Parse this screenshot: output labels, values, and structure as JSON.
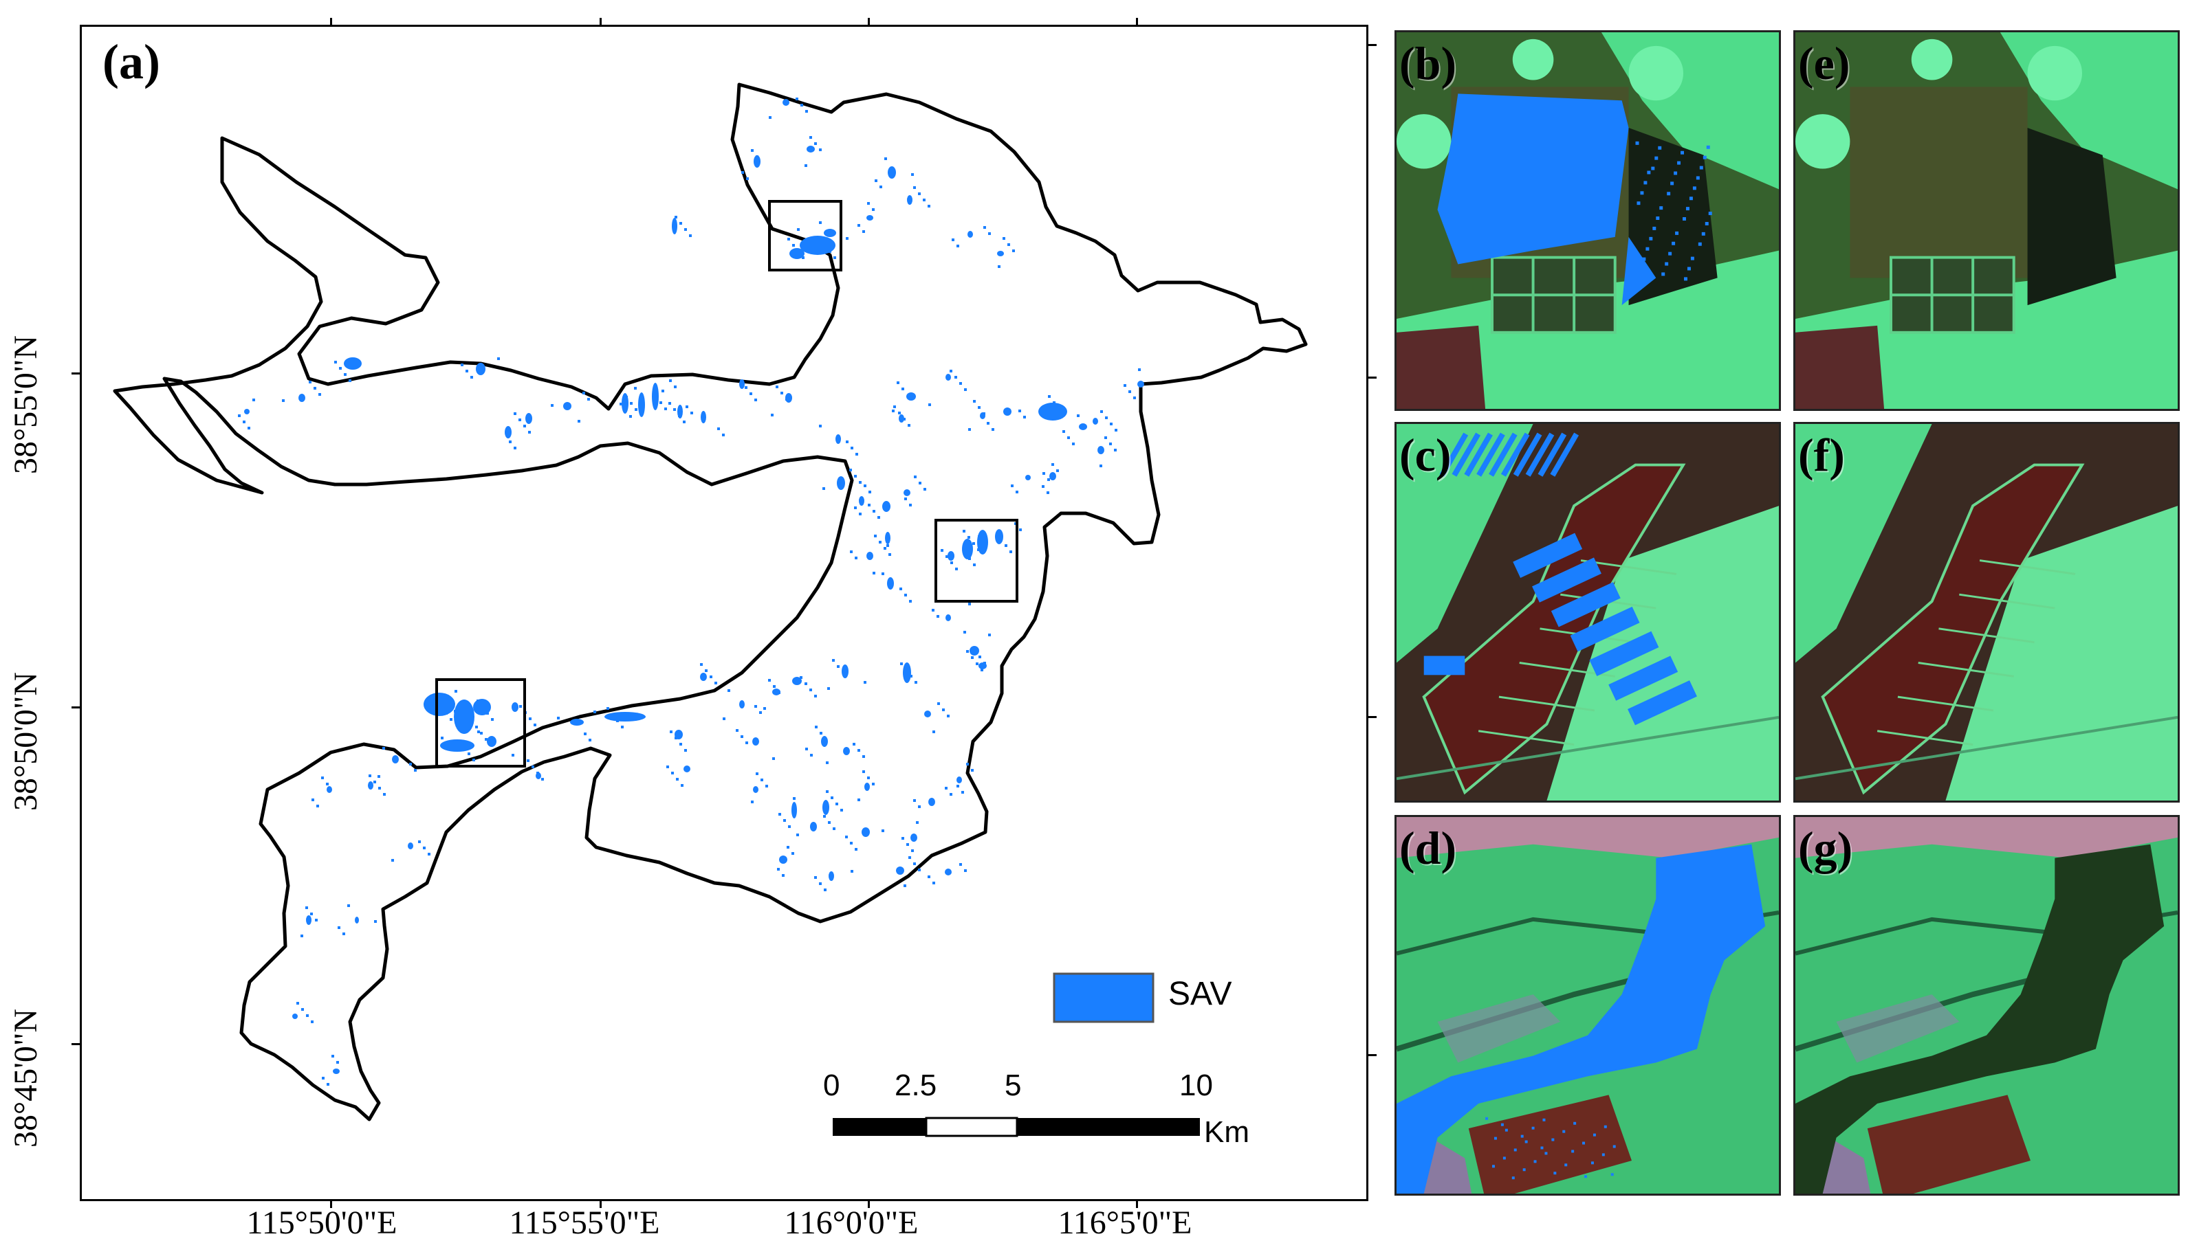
{
  "map": {
    "panel_label": "(a)",
    "x_ticks": [
      "115°50'0\"E",
      "115°55'0\"E",
      "116°0'0\"E",
      "116°5'0\"E"
    ],
    "y_ticks": [
      "38°55'0\"N",
      "38°50'0\"N",
      "38°45'0\"N"
    ],
    "legend": {
      "label": "SAV",
      "color": "#1a7fff"
    },
    "scalebar": {
      "ticks": [
        "0",
        "2.5",
        "5",
        "10"
      ],
      "unit": "Km"
    },
    "colors": {
      "sav": "#1a7fff",
      "boundary": "#000000"
    }
  },
  "thumbnails": [
    {
      "label": "(b)",
      "scene": "b",
      "sav_overlay": true
    },
    {
      "label": "(e)",
      "scene": "b",
      "sav_overlay": false
    },
    {
      "label": "(c)",
      "scene": "c",
      "sav_overlay": true
    },
    {
      "label": "(f)",
      "scene": "c",
      "sav_overlay": false
    },
    {
      "label": "(d)",
      "scene": "d",
      "sav_overlay": true
    },
    {
      "label": "(g)",
      "scene": "d",
      "sav_overlay": false
    }
  ]
}
